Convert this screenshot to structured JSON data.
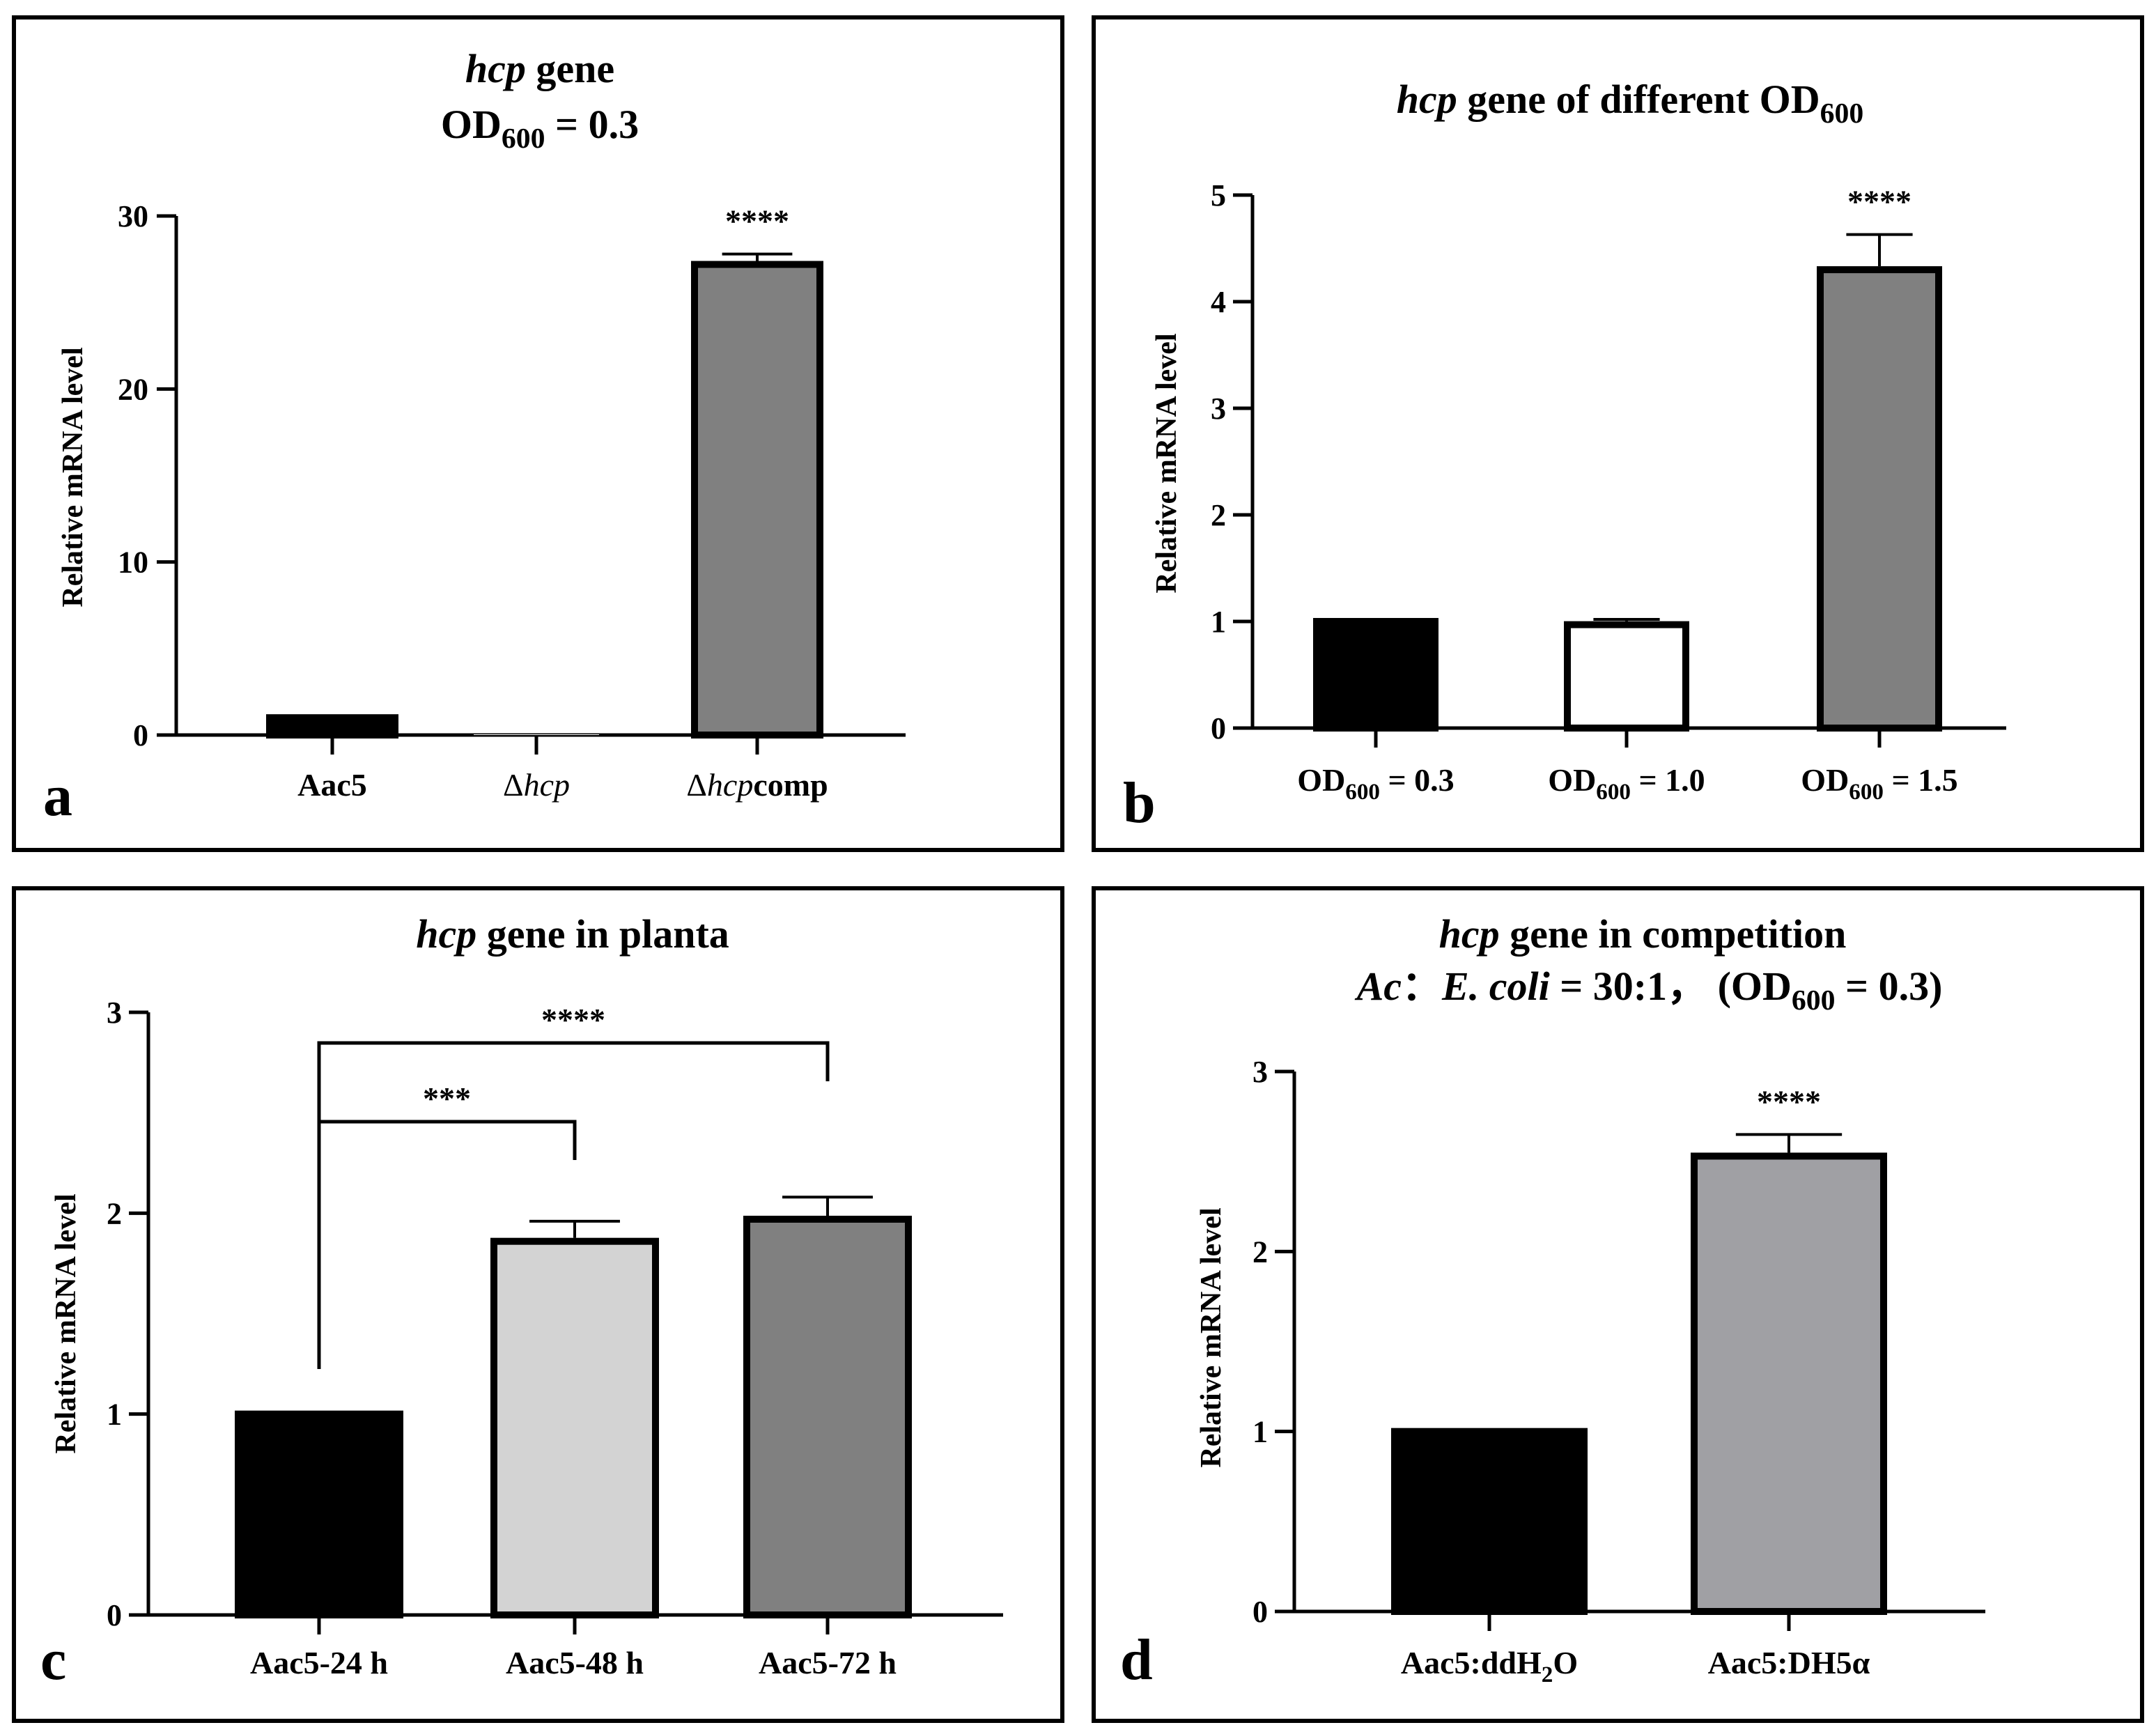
{
  "chart_data": [
    {
      "type": "bar",
      "panel": "a",
      "title": [
        "hcp gene",
        "OD600 = 0.3"
      ],
      "title_line1": {
        "italic": "hcp",
        "rest": " gene"
      },
      "title_line2": {
        "base": "OD",
        "sub": "600",
        "rest": " = 0.3"
      },
      "ylabel": "Relative mRNA level",
      "ylim": [
        0,
        30
      ],
      "yticks": [
        0,
        10,
        20,
        30
      ],
      "categories": [
        "Aac5",
        "Δhcp",
        "Δhcpcomp"
      ],
      "category_parts": [
        {
          "pre": "",
          "ital": "",
          "post": "Aac5"
        },
        {
          "pre": "Δ",
          "ital": "hcp",
          "post": ""
        },
        {
          "pre": "Δ",
          "ital": "hcp",
          "post": "comp"
        }
      ],
      "values": [
        1.0,
        0.0,
        27.2
      ],
      "errors": [
        0.0,
        0.0,
        0.6
      ],
      "colors": [
        "#000000",
        "#ffffff",
        "#808080"
      ],
      "significance": [
        {
          "bar": 2,
          "label": "****"
        }
      ]
    },
    {
      "type": "bar",
      "panel": "b",
      "title": [
        "hcp gene of different OD600"
      ],
      "title_line1": {
        "italic": "hcp",
        "rest": " gene of different OD",
        "sub": "600"
      },
      "ylabel": "Relative mRNA level",
      "ylim": [
        0,
        5
      ],
      "yticks": [
        0,
        1,
        2,
        3,
        4,
        5
      ],
      "categories": [
        "OD600 = 0.3",
        "OD600 = 1.0",
        "OD600 = 1.5"
      ],
      "category_parts": [
        {
          "base": "OD",
          "sub": "600",
          "rest": " = 0.3"
        },
        {
          "base": "OD",
          "sub": "600",
          "rest": " = 1.0"
        },
        {
          "base": "OD",
          "sub": "600",
          "rest": " = 1.5"
        }
      ],
      "values": [
        1.0,
        0.97,
        4.3
      ],
      "errors": [
        0.0,
        0.05,
        0.33
      ],
      "colors": [
        "#000000",
        "#ffffff",
        "#808080"
      ],
      "significance": [
        {
          "bar": 2,
          "label": "****"
        }
      ]
    },
    {
      "type": "bar",
      "panel": "c",
      "title": [
        "hcp gene in planta"
      ],
      "title_line1": {
        "italic": "hcp",
        "rest": " gene in planta"
      },
      "ylabel": "Relative mRNA level",
      "ylim": [
        0,
        3
      ],
      "yticks": [
        0,
        1,
        2,
        3
      ],
      "categories": [
        "Aac5-24 h",
        "Aac5-48 h",
        "Aac5-72 h"
      ],
      "values": [
        1.0,
        1.86,
        1.97
      ],
      "errors": [
        0.0,
        0.1,
        0.11
      ],
      "colors": [
        "#000000",
        "#d3d3d3",
        "#808080"
      ],
      "brackets": [
        {
          "from": 0,
          "to": 1,
          "label": "***"
        },
        {
          "from": 0,
          "to": 2,
          "label": "****"
        }
      ]
    },
    {
      "type": "bar",
      "panel": "d",
      "title": [
        "hcp gene in competition",
        "Ac: E. coli = 30:1, (OD600 = 0.3)"
      ],
      "title_line1": {
        "italic": "hcp",
        "rest": " gene in competition"
      },
      "title_line2": {
        "ac": "Ac",
        "sep": "：",
        "ecoli": "E. coli",
        "ratio": " = 30:1，  (OD",
        "sub": "600",
        "end": " = 0.3)"
      },
      "ylabel": "Relative mRNA level",
      "ylim": [
        0,
        3
      ],
      "yticks": [
        0,
        1,
        2,
        3
      ],
      "categories": [
        "Aac5:ddH2O",
        "Aac5:DH5α"
      ],
      "category_parts": [
        {
          "base": "Aac5:ddH",
          "sub": "2",
          "rest": "O"
        },
        {
          "base": "Aac5:DH5",
          "sub": "",
          "rest": "α"
        }
      ],
      "values": [
        1.0,
        2.53
      ],
      "errors": [
        0.0,
        0.12
      ],
      "colors": [
        "#000000",
        "#a0a0a4"
      ],
      "significance": [
        {
          "bar": 1,
          "label": "****"
        }
      ]
    }
  ]
}
